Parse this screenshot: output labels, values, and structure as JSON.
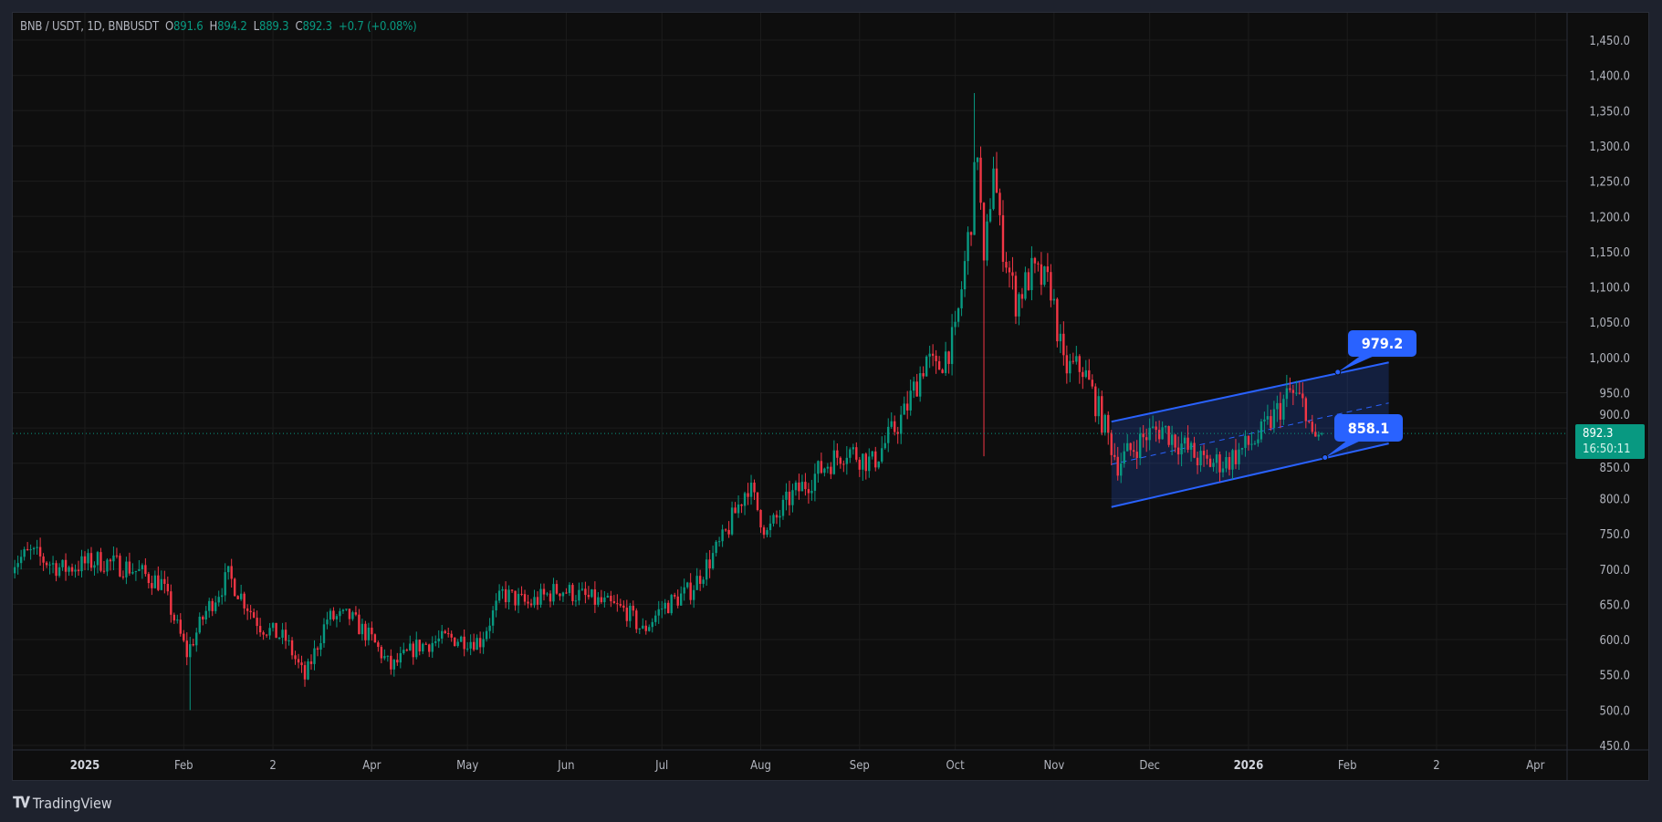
{
  "header": {
    "symbol": "BNB / USDT, 1D, BNBUSDT",
    "o_label": "O",
    "open": "891.6",
    "h_label": "H",
    "high": "894.2",
    "l_label": "L",
    "low": "889.3",
    "c_label": "C",
    "close": "892.3",
    "change": "+0.7 (+0.08%)"
  },
  "current_price": {
    "price": "892.3",
    "countdown": "16:50:11",
    "color": "#089981"
  },
  "footer": {
    "brand": "TradingView",
    "logo_text": "17"
  },
  "colors": {
    "up": "#089981",
    "down": "#f23645",
    "channel": "#2962ff",
    "background": "#0e0e0e"
  },
  "annotations": {
    "upper_label": "979.2",
    "lower_label": "858.1"
  },
  "chart_data": {
    "type": "candlestick",
    "timeframe": "1D",
    "ylim": [
      450,
      1475
    ],
    "grid": true,
    "y_ticks": [
      "1,450.0",
      "1,400.0",
      "1,350.0",
      "1,300.0",
      "1,250.0",
      "1,200.0",
      "1,150.0",
      "1,100.0",
      "1,050.0",
      "1,000.0",
      "950.0",
      "900.0",
      "850.0",
      "800.0",
      "750.0",
      "700.0",
      "650.0",
      "600.0",
      "550.0",
      "500.0",
      "450.0"
    ],
    "x_ticks": [
      {
        "label": "2025",
        "date": "2025-01-01",
        "bold": true
      },
      {
        "label": "Feb",
        "date": "2025-02-01"
      },
      {
        "label": "2",
        "date": "2025-03-01"
      },
      {
        "label": "Apr",
        "date": "2025-04-01"
      },
      {
        "label": "May",
        "date": "2025-05-01"
      },
      {
        "label": "Jun",
        "date": "2025-06-01"
      },
      {
        "label": "Jul",
        "date": "2025-07-01"
      },
      {
        "label": "Aug",
        "date": "2025-08-01"
      },
      {
        "label": "Sep",
        "date": "2025-09-01"
      },
      {
        "label": "Oct",
        "date": "2025-10-01"
      },
      {
        "label": "Nov",
        "date": "2025-11-01"
      },
      {
        "label": "Dec",
        "date": "2025-12-01"
      },
      {
        "label": "2026",
        "date": "2026-01-01",
        "bold": true
      },
      {
        "label": "Feb",
        "date": "2026-02-01"
      },
      {
        "label": "2",
        "date": "2026-03-01"
      },
      {
        "label": "Apr",
        "date": "2026-04-01"
      }
    ],
    "approx_closes": [
      [
        "2024-12-09",
        710
      ],
      [
        "2024-12-15",
        722
      ],
      [
        "2024-12-25",
        700
      ],
      [
        "2025-01-05",
        712
      ],
      [
        "2025-01-15",
        702
      ],
      [
        "2025-01-25",
        680
      ],
      [
        "2025-02-02",
        580
      ],
      [
        "2025-02-08",
        640
      ],
      [
        "2025-02-15",
        690
      ],
      [
        "2025-02-25",
        620
      ],
      [
        "2025-03-05",
        600
      ],
      [
        "2025-03-11",
        545
      ],
      [
        "2025-03-18",
        630
      ],
      [
        "2025-03-25",
        632
      ],
      [
        "2025-04-01",
        600
      ],
      [
        "2025-04-07",
        560
      ],
      [
        "2025-04-15",
        590
      ],
      [
        "2025-04-25",
        602
      ],
      [
        "2025-05-05",
        598
      ],
      [
        "2025-05-12",
        665
      ],
      [
        "2025-05-20",
        650
      ],
      [
        "2025-05-30",
        672
      ],
      [
        "2025-06-10",
        655
      ],
      [
        "2025-06-20",
        640
      ],
      [
        "2025-06-25",
        612
      ],
      [
        "2025-07-01",
        645
      ],
      [
        "2025-07-10",
        670
      ],
      [
        "2025-07-20",
        740
      ],
      [
        "2025-07-28",
        820
      ],
      [
        "2025-08-03",
        750
      ],
      [
        "2025-08-10",
        800
      ],
      [
        "2025-08-22",
        850
      ],
      [
        "2025-08-28",
        870
      ],
      [
        "2025-09-05",
        850
      ],
      [
        "2025-09-15",
        920
      ],
      [
        "2025-09-22",
        1000
      ],
      [
        "2025-09-25",
        980
      ],
      [
        "2025-10-01",
        1030
      ],
      [
        "2025-10-06",
        1200
      ],
      [
        "2025-10-08",
        1300
      ],
      [
        "2025-10-10",
        1120
      ],
      [
        "2025-10-13",
        1280
      ],
      [
        "2025-10-15",
        1180
      ],
      [
        "2025-10-20",
        1080
      ],
      [
        "2025-10-25",
        1120
      ],
      [
        "2025-10-31",
        1100
      ],
      [
        "2025-11-04",
        985
      ],
      [
        "2025-11-10",
        985
      ],
      [
        "2025-11-15",
        925
      ],
      [
        "2025-11-21",
        850
      ],
      [
        "2025-11-30",
        890
      ],
      [
        "2025-12-05",
        900
      ],
      [
        "2025-12-10",
        880
      ],
      [
        "2025-12-18",
        850
      ],
      [
        "2025-12-25",
        852
      ],
      [
        "2026-01-05",
        890
      ],
      [
        "2026-01-14",
        950
      ],
      [
        "2026-01-19",
        930
      ],
      [
        "2026-01-21",
        880
      ],
      [
        "2026-01-24",
        892.3
      ]
    ],
    "last_candle": {
      "date": "2026-01-24",
      "open": 891.6,
      "high": 894.2,
      "low": 889.3,
      "close": 892.3
    },
    "notable_wicks": {
      "all_time_high": 1375,
      "october_flash_low": 860,
      "feb_low": 500
    },
    "channel": {
      "type": "parallel_channel",
      "upper": [
        [
          "2025-11-19",
          909
        ],
        [
          "2026-02-14",
          993
        ]
      ],
      "lower": [
        [
          "2025-11-19",
          788
        ],
        [
          "2026-02-14",
          878
        ]
      ],
      "midline": "dashed",
      "price_labels": [
        {
          "text": "979.2",
          "date": "2026-01-29",
          "price": 979.2
        },
        {
          "text": "858.1",
          "date": "2026-01-25",
          "price": 858.1
        }
      ]
    }
  }
}
